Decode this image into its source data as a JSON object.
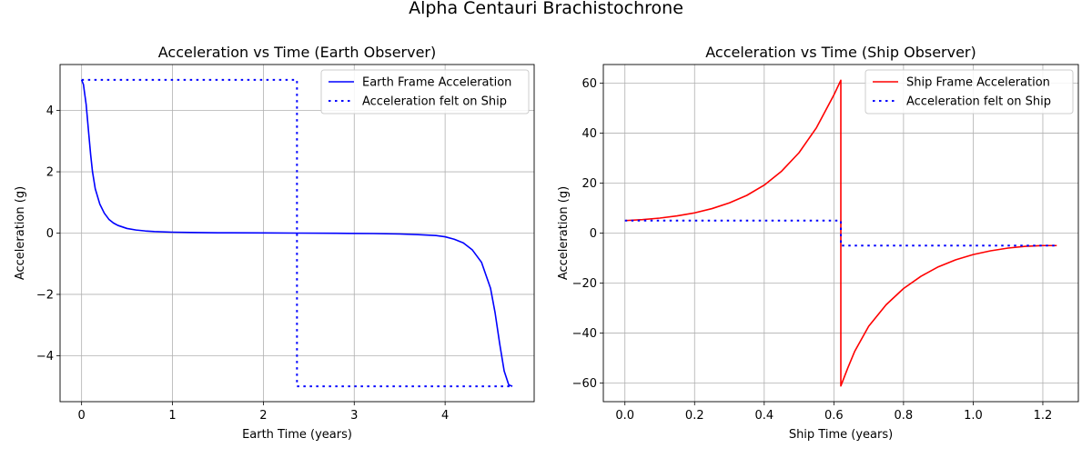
{
  "suptitle": "Alpha Centauri Brachistochrone",
  "chart_data": [
    {
      "type": "line",
      "title": "Acceleration vs Time (Earth Observer)",
      "xlabel": "Earth Time (years)",
      "ylabel": "Acceleration (g)",
      "xlim": [
        -0.237,
        4.98
      ],
      "ylim": [
        -5.5,
        5.5
      ],
      "xticks": [
        0,
        1,
        2,
        3,
        4
      ],
      "yticks": [
        -4,
        -2,
        0,
        2,
        4
      ],
      "xtick_labels": [
        "0",
        "1",
        "2",
        "3",
        "4"
      ],
      "ytick_labels": [
        "−4",
        "−2",
        "0",
        "2",
        "4"
      ],
      "grid": true,
      "legend_position": "top-right",
      "series": [
        {
          "name": "Earth Frame Acceleration",
          "color": "#0000ff",
          "style": "solid",
          "x": [
            0,
            0.02,
            0.05,
            0.08,
            0.1,
            0.12,
            0.15,
            0.2,
            0.25,
            0.3,
            0.35,
            0.4,
            0.5,
            0.6,
            0.7,
            0.8,
            1.0,
            1.2,
            1.5,
            2.0,
            2.37,
            2.8,
            3.2,
            3.5,
            3.7,
            3.9,
            4.0,
            4.1,
            4.2,
            4.3,
            4.4,
            4.5,
            4.55,
            4.6,
            4.65,
            4.7,
            4.74
          ],
          "y": [
            5.0,
            4.85,
            4.2,
            3.2,
            2.55,
            2.0,
            1.45,
            0.95,
            0.65,
            0.45,
            0.33,
            0.25,
            0.15,
            0.1,
            0.07,
            0.05,
            0.03,
            0.02,
            0.01,
            0.005,
            0.0,
            -0.005,
            -0.015,
            -0.03,
            -0.05,
            -0.08,
            -0.12,
            -0.2,
            -0.32,
            -0.55,
            -0.95,
            -1.8,
            -2.6,
            -3.6,
            -4.5,
            -4.95,
            -5.0
          ]
        },
        {
          "name": "Acceleration felt on Ship",
          "color": "#0000ff",
          "style": "dotted",
          "x": [
            0,
            2.37,
            2.37,
            4.74
          ],
          "y": [
            5,
            5,
            -5,
            -5
          ]
        }
      ]
    },
    {
      "type": "line",
      "title": "Acceleration vs Time (Ship Observer)",
      "xlabel": "Ship Time (years)",
      "ylabel": "Acceleration (g)",
      "xlim": [
        -0.062,
        1.302
      ],
      "ylim": [
        -67.5,
        67.5
      ],
      "xticks": [
        0,
        0.2,
        0.4,
        0.6,
        0.8,
        1.0,
        1.2
      ],
      "yticks": [
        -60,
        -40,
        -20,
        0,
        20,
        40,
        60
      ],
      "xtick_labels": [
        "0.0",
        "0.2",
        "0.4",
        "0.6",
        "0.8",
        "1.0",
        "1.2"
      ],
      "ytick_labels": [
        "−60",
        "−40",
        "−20",
        "0",
        "20",
        "40",
        "60"
      ],
      "grid": true,
      "legend_position": "top-right",
      "series": [
        {
          "name": "Ship Frame Acceleration",
          "color": "#ff0000",
          "style": "solid",
          "x": [
            0,
            0.05,
            0.1,
            0.15,
            0.2,
            0.25,
            0.3,
            0.35,
            0.4,
            0.45,
            0.5,
            0.55,
            0.6,
            0.62,
            0.62,
            0.64,
            0.66,
            0.7,
            0.75,
            0.8,
            0.85,
            0.9,
            0.95,
            1.0,
            1.05,
            1.1,
            1.15,
            1.2,
            1.24
          ],
          "y": [
            5.0,
            5.4,
            6.0,
            6.9,
            8.1,
            9.8,
            12.1,
            15.1,
            19.2,
            24.8,
            32.2,
            42.2,
            55.3,
            61.2,
            -61.2,
            -54.0,
            -47.3,
            -37.3,
            -28.7,
            -22.2,
            -17.3,
            -13.5,
            -10.7,
            -8.6,
            -7.1,
            -6.0,
            -5.3,
            -5.0,
            -5.0
          ]
        },
        {
          "name": "Acceleration felt on Ship",
          "color": "#0000ff",
          "style": "dotted",
          "x": [
            0,
            0.62,
            0.62,
            1.24
          ],
          "y": [
            5,
            5,
            -5,
            -5
          ]
        }
      ]
    }
  ]
}
